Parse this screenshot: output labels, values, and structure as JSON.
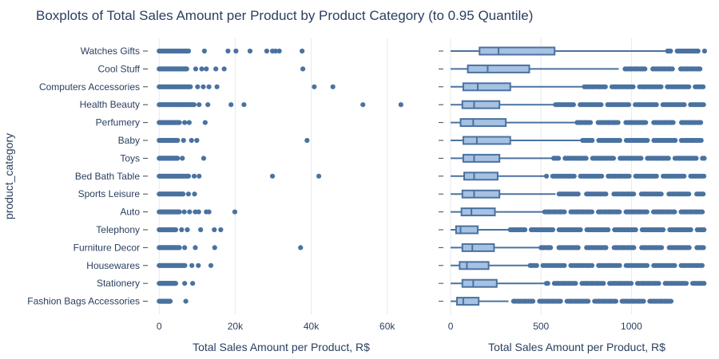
{
  "title": "Boxplots of Total Sales Amount per Product by Product Category (to 0.95 Quantile)",
  "y_axis_title": "product_category",
  "colors": {
    "point": "#4a72a0",
    "box_fill": "#a6c1e2",
    "box_line": "#4a72a0",
    "grid": "#e6e9ef",
    "text": "#2a3f5f"
  },
  "chart_data": [
    {
      "type": "scatter",
      "subtype": "strip",
      "xlabel": "Total Sales Amount per Product, R$",
      "xlim": [
        -3000,
        67000
      ],
      "xticks": [
        0,
        20000,
        40000,
        60000
      ],
      "xtick_labels": [
        "0",
        "20k",
        "40k",
        "60k"
      ],
      "grid": true,
      "categories": [
        "Watches Gifts",
        "Cool Stuff",
        "Computers Accessories",
        "Health Beauty",
        "Perfumery",
        "Baby",
        "Toys",
        "Bed Bath Table",
        "Sports Leisure",
        "Auto",
        "Telephony",
        "Furniture Decor",
        "Housewares",
        "Stationery",
        "Fashion Bags Accessories"
      ],
      "series": [
        {
          "category": "Watches Gifts",
          "dense_max": 8000,
          "outliers": [
            11900,
            18100,
            20200,
            23900,
            28300,
            29800,
            30600,
            31600,
            37600
          ]
        },
        {
          "category": "Cool Stuff",
          "dense_max": 7500,
          "outliers": [
            9600,
            11200,
            12400,
            14900,
            17100,
            37800
          ]
        },
        {
          "category": "Computers Accessories",
          "dense_max": 8500,
          "outliers": [
            10100,
            11600,
            13100,
            15200,
            40800,
            45700
          ]
        },
        {
          "category": "Health Beauty",
          "dense_max": 9500,
          "outliers": [
            10500,
            12800,
            18900,
            22300,
            53600,
            63600
          ]
        },
        {
          "category": "Perfumery",
          "dense_max": 5500,
          "outliers": [
            6700,
            7900,
            12100
          ]
        },
        {
          "category": "Baby",
          "dense_max": 5000,
          "outliers": [
            6400,
            8500,
            9900,
            38900
          ]
        },
        {
          "category": "Toys",
          "dense_max": 5000,
          "outliers": [
            6100,
            11700
          ]
        },
        {
          "category": "Bed Bath Table",
          "dense_max": 8000,
          "outliers": [
            9200,
            10500,
            29800,
            42000
          ]
        },
        {
          "category": "Sports Leisure",
          "dense_max": 6500,
          "outliers": [
            7700,
            9300
          ]
        },
        {
          "category": "Auto",
          "dense_max": 5500,
          "outliers": [
            6600,
            8000,
            9500,
            10400,
            12400,
            13100,
            19900
          ]
        },
        {
          "category": "Telephony",
          "dense_max": 4500,
          "outliers": [
            5900,
            7400,
            10900,
            14500,
            16200
          ]
        },
        {
          "category": "Furniture Decor",
          "dense_max": 5500,
          "outliers": [
            6700,
            9500,
            14600,
            37200
          ]
        },
        {
          "category": "Housewares",
          "dense_max": 7000,
          "outliers": [
            8600,
            10300,
            13600
          ]
        },
        {
          "category": "Stationery",
          "dense_max": 4500,
          "outliers": [
            6700,
            8800
          ]
        },
        {
          "category": "Fashion Bags Accessories",
          "dense_max": 3000,
          "outliers": [
            7000
          ]
        }
      ]
    },
    {
      "type": "box",
      "xlabel": "Total Sales Amount per Product, R$",
      "xlim": [
        -40,
        1440
      ],
      "xticks": [
        0,
        500,
        1000
      ],
      "xtick_labels": [
        "0",
        "500",
        "1000"
      ],
      "grid": true,
      "series": [
        {
          "category": "Watches Gifts",
          "min": 0,
          "q1": 160,
          "median": 265,
          "q3": 575,
          "whisker_high": 1200,
          "outliers_from": 1200,
          "outliers_to": 1405
        },
        {
          "category": "Cool Stuff",
          "min": 0,
          "q1": 95,
          "median": 205,
          "q3": 435,
          "whisker_high": 930,
          "outliers_from": 930,
          "outliers_to": 1405
        },
        {
          "category": "Computers Accessories",
          "min": 0,
          "q1": 70,
          "median": 150,
          "q3": 330,
          "whisker_high": 730,
          "outliers_from": 730,
          "outliers_to": 1405
        },
        {
          "category": "Health Beauty",
          "min": 0,
          "q1": 65,
          "median": 130,
          "q3": 270,
          "whisker_high": 580,
          "outliers_from": 580,
          "outliers_to": 1405
        },
        {
          "category": "Perfumery",
          "min": 0,
          "q1": 55,
          "median": 125,
          "q3": 305,
          "whisker_high": 700,
          "outliers_from": 700,
          "outliers_to": 1405
        },
        {
          "category": "Baby",
          "min": 0,
          "q1": 70,
          "median": 145,
          "q3": 330,
          "whisker_high": 730,
          "outliers_from": 730,
          "outliers_to": 1405
        },
        {
          "category": "Toys",
          "min": 0,
          "q1": 70,
          "median": 130,
          "q3": 270,
          "whisker_high": 570,
          "outliers_from": 570,
          "outliers_to": 1405
        },
        {
          "category": "Bed Bath Table",
          "min": 0,
          "q1": 75,
          "median": 130,
          "q3": 260,
          "whisker_high": 530,
          "outliers_from": 530,
          "outliers_to": 1405
        },
        {
          "category": "Sports Leisure",
          "min": 0,
          "q1": 65,
          "median": 130,
          "q3": 270,
          "whisker_high": 580,
          "outliers_from": 580,
          "outliers_to": 1405
        },
        {
          "category": "Auto",
          "min": 0,
          "q1": 60,
          "median": 115,
          "q3": 245,
          "whisker_high": 520,
          "outliers_from": 520,
          "outliers_to": 1405
        },
        {
          "category": "Telephony",
          "min": 0,
          "q1": 30,
          "median": 55,
          "q3": 150,
          "whisker_high": 330,
          "outliers_from": 330,
          "outliers_to": 1405
        },
        {
          "category": "Furniture Decor",
          "min": 0,
          "q1": 65,
          "median": 120,
          "q3": 240,
          "whisker_high": 500,
          "outliers_from": 500,
          "outliers_to": 1405
        },
        {
          "category": "Housewares",
          "min": 0,
          "q1": 50,
          "median": 90,
          "q3": 210,
          "whisker_high": 440,
          "outliers_from": 440,
          "outliers_to": 1405
        },
        {
          "category": "Stationery",
          "min": 0,
          "q1": 65,
          "median": 125,
          "q3": 255,
          "whisker_high": 530,
          "outliers_from": 530,
          "outliers_to": 1405
        },
        {
          "category": "Fashion Bags Accessories",
          "min": 0,
          "q1": 35,
          "median": 70,
          "q3": 155,
          "whisker_high": 320,
          "outliers_from": 320,
          "outliers_to": 1230
        }
      ]
    }
  ]
}
